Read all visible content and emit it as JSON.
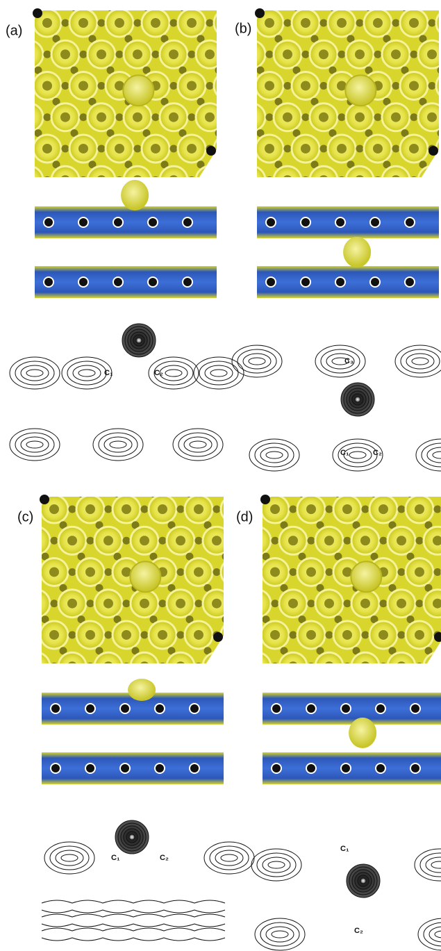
{
  "panels": [
    {
      "label": "(a)",
      "atoms": [
        "C₁",
        "C₂"
      ]
    },
    {
      "label": "(b)",
      "atoms": [
        "C₃",
        "C₁",
        "C₂"
      ]
    },
    {
      "label": "(c)",
      "atoms": [
        "C₁",
        "C₂"
      ]
    },
    {
      "label": "(d)",
      "atoms": [
        "C₁",
        "C₂"
      ]
    }
  ]
}
